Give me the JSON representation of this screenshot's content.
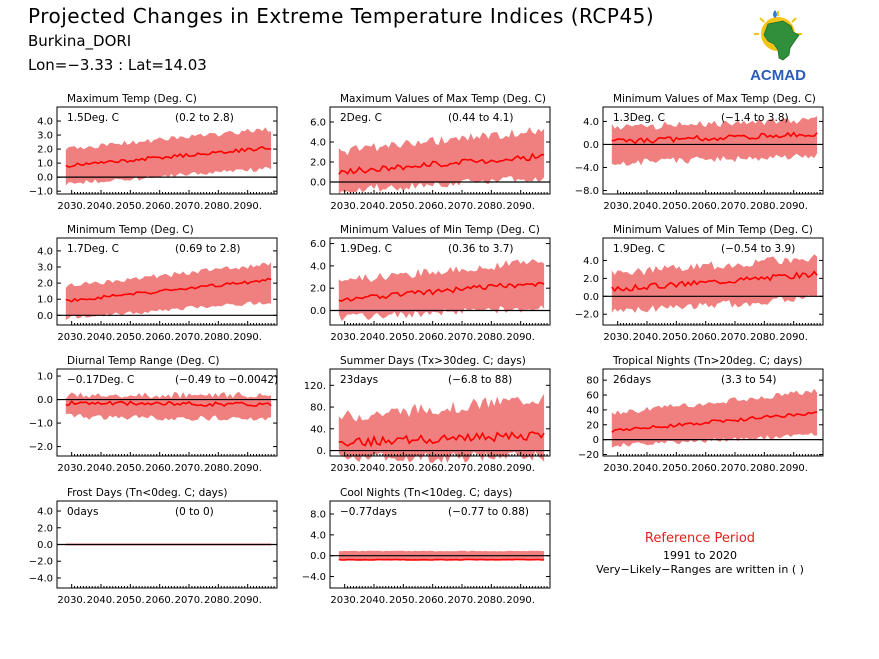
{
  "header": {
    "title": "Projected Changes in Extreme Temperature Indices (RCP45)",
    "location": "Burkina_DORI",
    "coords": "Lon=−3.33 : Lat=14.03"
  },
  "logo": {
    "text": "ACMAD",
    "icon": "acmad-africa-logo"
  },
  "colors": {
    "band": "#f08080",
    "line": "#ff0000",
    "zero": "#000000",
    "reference": "#e0201b"
  },
  "reference": {
    "title": "Reference Period",
    "years": "1991 to 2020",
    "note": "Very−Likely−Ranges are written in ( )"
  },
  "chart_data": [
    {
      "type": "area",
      "title": "Maximum Temp (Deg. C)",
      "summary": "1.5Deg. C",
      "range": "(0.2 to 2.8)",
      "x": [
        2025,
        2100
      ],
      "xticks": [
        "2030.",
        "2040.",
        "2050.",
        "2060.",
        "2070.",
        "2080.",
        "2090."
      ],
      "ylim": [
        -1.2,
        5.0
      ],
      "yticks": [
        -1.0,
        0.0,
        1.0,
        2.0,
        3.0,
        4.0
      ],
      "ytick_labels": [
        "−1.0",
        "0.0",
        "1.0",
        "2.0",
        "3.0",
        "4.0"
      ],
      "median_start": 0.8,
      "median_end": 2.1,
      "lower_start": -0.3,
      "lower_end": 0.8,
      "upper_start": 2.0,
      "upper_end": 3.4,
      "noise": 0.35,
      "seed": 11
    },
    {
      "type": "area",
      "title": "Maximum Values of Max Temp (Deg. C)",
      "summary": "2Deg. C",
      "range": "(0.44 to 4.1)",
      "x": [
        2025,
        2100
      ],
      "xticks": [
        "2030.",
        "2040.",
        "2050.",
        "2060.",
        "2070.",
        "2080.",
        "2090."
      ],
      "ylim": [
        -1.2,
        7.5
      ],
      "yticks": [
        0.0,
        2.0,
        4.0,
        6.0
      ],
      "ytick_labels": [
        "0.0",
        "2.0",
        "4.0",
        "6.0"
      ],
      "median_start": 1.0,
      "median_end": 2.6,
      "lower_start": -0.4,
      "lower_end": 0.8,
      "upper_start": 3.0,
      "upper_end": 5.2,
      "noise": 0.9,
      "seed": 23
    },
    {
      "type": "area",
      "title": "Minimum Values of Max Temp (Deg. C)",
      "summary": "1.3Deg. C",
      "range": "(−1.4 to 3.8)",
      "x": [
        2025,
        2100
      ],
      "xticks": [
        "2030.",
        "2040.",
        "2050.",
        "2060.",
        "2070.",
        "2080.",
        "2090."
      ],
      "ylim": [
        -8.6,
        6.5
      ],
      "yticks": [
        -8.0,
        -4.0,
        0.0,
        4.0
      ],
      "ytick_labels": [
        "−8.0",
        "−4.0",
        "0.0",
        "4.0"
      ],
      "median_start": 0.5,
      "median_end": 1.8,
      "lower_start": -2.5,
      "lower_end": -1.5,
      "upper_start": 2.8,
      "upper_end": 4.2,
      "noise": 1.3,
      "seed": 37
    },
    {
      "type": "area",
      "title": "Minimum Temp (Deg. C)",
      "summary": "1.7Deg. C",
      "range": "(0.69 to 2.8)",
      "x": [
        2025,
        2100
      ],
      "xticks": [
        "2030.",
        "2040.",
        "2050.",
        "2060.",
        "2070.",
        "2080.",
        "2090."
      ],
      "ylim": [
        -0.6,
        4.8
      ],
      "yticks": [
        0.0,
        1.0,
        2.0,
        3.0,
        4.0
      ],
      "ytick_labels": [
        "0.0",
        "1.0",
        "2.0",
        "3.0",
        "4.0"
      ],
      "median_start": 0.9,
      "median_end": 2.2,
      "lower_start": 0.0,
      "lower_end": 1.0,
      "upper_start": 1.8,
      "upper_end": 3.2,
      "noise": 0.3,
      "seed": 41
    },
    {
      "type": "area",
      "title": "Minimum Values of Min Temp (Deg. C)",
      "summary": "1.9Deg. C",
      "range": "(0.36 to 3.7)",
      "x": [
        2025,
        2100
      ],
      "xticks": [
        "2030.",
        "2040.",
        "2050.",
        "2060.",
        "2070.",
        "2080.",
        "2090."
      ],
      "ylim": [
        -1.3,
        6.5
      ],
      "yticks": [
        0.0,
        2.0,
        4.0,
        6.0
      ],
      "ytick_labels": [
        "0.0",
        "2.0",
        "4.0",
        "6.0"
      ],
      "median_start": 1.0,
      "median_end": 2.5,
      "lower_start": -0.3,
      "lower_end": 0.6,
      "upper_start": 2.6,
      "upper_end": 4.4,
      "noise": 0.7,
      "seed": 53
    },
    {
      "type": "area",
      "title": "Minimum Values of Min Temp (Deg. C)",
      "summary": "1.9Deg. C",
      "range": "(−0.54 to 3.9)",
      "x": [
        2025,
        2100
      ],
      "xticks": [
        "2030.",
        "2040.",
        "2050.",
        "2060.",
        "2070.",
        "2080.",
        "2090."
      ],
      "ylim": [
        -3.2,
        6.5
      ],
      "yticks": [
        -2.0,
        0.0,
        2.0,
        4.0
      ],
      "ytick_labels": [
        "−2.0",
        "0.0",
        "2.0",
        "4.0"
      ],
      "median_start": 0.8,
      "median_end": 2.5,
      "lower_start": -1.2,
      "lower_end": 0.2,
      "upper_start": 2.5,
      "upper_end": 4.3,
      "noise": 0.9,
      "seed": 67
    },
    {
      "type": "area",
      "title": "Diurnal Temp Range (Deg. C)",
      "summary": "−0.17Deg. C",
      "range": "(−0.49 to −0.0042)",
      "x": [
        2025,
        2100
      ],
      "xticks": [
        "2030.",
        "2040.",
        "2050.",
        "2060.",
        "2070.",
        "2080.",
        "2090."
      ],
      "ylim": [
        -2.4,
        1.3
      ],
      "yticks": [
        -2.0,
        -1.0,
        0.0,
        1.0
      ],
      "ytick_labels": [
        "−2.0",
        "−1.0",
        "0.0",
        "1.0"
      ],
      "median_start": -0.15,
      "median_end": -0.2,
      "lower_start": -0.6,
      "lower_end": -0.7,
      "upper_start": 0.15,
      "upper_end": 0.2,
      "noise": 0.25,
      "seed": 71
    },
    {
      "type": "area",
      "title": "Summer Days (Tx>30deg. C; days)",
      "summary": "23days",
      "range": "(−6.8 to 88)",
      "x": [
        2025,
        2100
      ],
      "xticks": [
        "2030.",
        "2040.",
        "2050.",
        "2060.",
        "2070.",
        "2080.",
        "2090."
      ],
      "ylim": [
        -10,
        150
      ],
      "yticks": [
        0,
        40,
        80,
        120
      ],
      "ytick_labels": [
        "0.",
        "40.",
        "80.",
        "120."
      ],
      "median_start": 15,
      "median_end": 28,
      "lower_start": -3,
      "lower_end": 0,
      "upper_start": 60,
      "upper_end": 95,
      "noise": 22,
      "seed": 83
    },
    {
      "type": "area",
      "title": "Tropical Nights (Tn>20deg. C; days)",
      "summary": "26days",
      "range": "(3.3 to 54)",
      "x": [
        2025,
        2100
      ],
      "xticks": [
        "2030.",
        "2040.",
        "2050.",
        "2060.",
        "2070.",
        "2080.",
        "2090."
      ],
      "ylim": [
        -22,
        95
      ],
      "yticks": [
        -20,
        0,
        20,
        40,
        60,
        80
      ],
      "ytick_labels": [
        "−20",
        "0",
        "20",
        "40",
        "60",
        "80"
      ],
      "median_start": 12,
      "median_end": 36,
      "lower_start": -5,
      "lower_end": 10,
      "upper_start": 35,
      "upper_end": 65,
      "noise": 7,
      "seed": 97
    },
    {
      "type": "area",
      "title": "Frost Days (Tn<0deg. C; days)",
      "summary": "0days",
      "range": "(0 to 0)",
      "x": [
        2025,
        2100
      ],
      "xticks": [
        "2030.",
        "2040.",
        "2050.",
        "2060.",
        "2070.",
        "2080.",
        "2090."
      ],
      "ylim": [
        -5.2,
        5.2
      ],
      "yticks": [
        -4.0,
        -2.0,
        0.0,
        2.0,
        4.0
      ],
      "ytick_labels": [
        "−4.0",
        "−2.0",
        "0.0",
        "2.0",
        "4.0"
      ],
      "median_start": 0,
      "median_end": 0,
      "lower_start": 0,
      "lower_end": 0,
      "upper_start": 0,
      "upper_end": 0,
      "noise": 0,
      "seed": 101
    },
    {
      "type": "area",
      "title": "Cool Nights (Tn<10deg. C; days)",
      "summary": "−0.77days",
      "range": "(−0.77 to 0.88)",
      "x": [
        2025,
        2100
      ],
      "xticks": [
        "2030.",
        "2040.",
        "2050.",
        "2060.",
        "2070.",
        "2080.",
        "2090."
      ],
      "ylim": [
        -6.2,
        10.5
      ],
      "yticks": [
        -4.0,
        0.0,
        4.0,
        8.0
      ],
      "ytick_labels": [
        "−4.0",
        "0.0",
        "4.0",
        "8.0"
      ],
      "median_start": -0.77,
      "median_end": -0.77,
      "lower_start": -0.77,
      "lower_end": -0.77,
      "upper_start": 0.88,
      "upper_end": 0.88,
      "noise": 0.15,
      "seed": 113
    }
  ]
}
